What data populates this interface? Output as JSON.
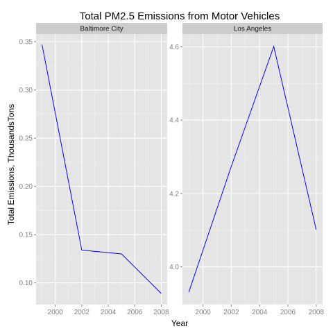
{
  "title": "Total PM2.5 Emissions from Motor Vehicles",
  "xlabel": "Year",
  "ylabel": "Total Emissions, ThousandsTons",
  "colors": {
    "line": "#0000ff",
    "panel_bg": "#e5e5e5",
    "strip_bg": "#cccccc",
    "grid_major": "#ffffff",
    "grid_minor": "#f2f2f2"
  },
  "chart_data": [
    {
      "type": "line",
      "facet": "Baltimore City",
      "x": [
        1999,
        2002,
        2005,
        2008
      ],
      "y": [
        0.347,
        0.134,
        0.13,
        0.089
      ],
      "xlim": [
        1998.55,
        2008.45
      ],
      "ylim": [
        0.0775,
        0.358
      ],
      "xticks": [
        2000,
        2002,
        2004,
        2006,
        2008
      ],
      "xtick_labels": [
        "2000",
        "2002",
        "2004",
        "2006",
        "2008"
      ],
      "yticks": [
        0.1,
        0.15,
        0.2,
        0.25,
        0.3,
        0.35
      ],
      "ytick_labels": [
        "0.10",
        "0.15",
        "0.20",
        "0.25",
        "0.30",
        "0.35"
      ],
      "grid": true
    },
    {
      "type": "line",
      "facet": "Los Angeles",
      "x": [
        1999,
        2002,
        2005,
        2008
      ],
      "y": [
        3.931,
        4.274,
        4.601,
        4.101
      ],
      "xlim": [
        1998.55,
        2008.45
      ],
      "ylim": [
        3.897,
        4.635
      ],
      "xticks": [
        2000,
        2002,
        2004,
        2006,
        2008
      ],
      "xtick_labels": [
        "2000",
        "2002",
        "2004",
        "2006",
        "2008"
      ],
      "yticks": [
        4.0,
        4.2,
        4.4,
        4.6
      ],
      "ytick_labels": [
        "4.0",
        "4.2",
        "4.4",
        "4.6"
      ],
      "grid": true
    }
  ]
}
